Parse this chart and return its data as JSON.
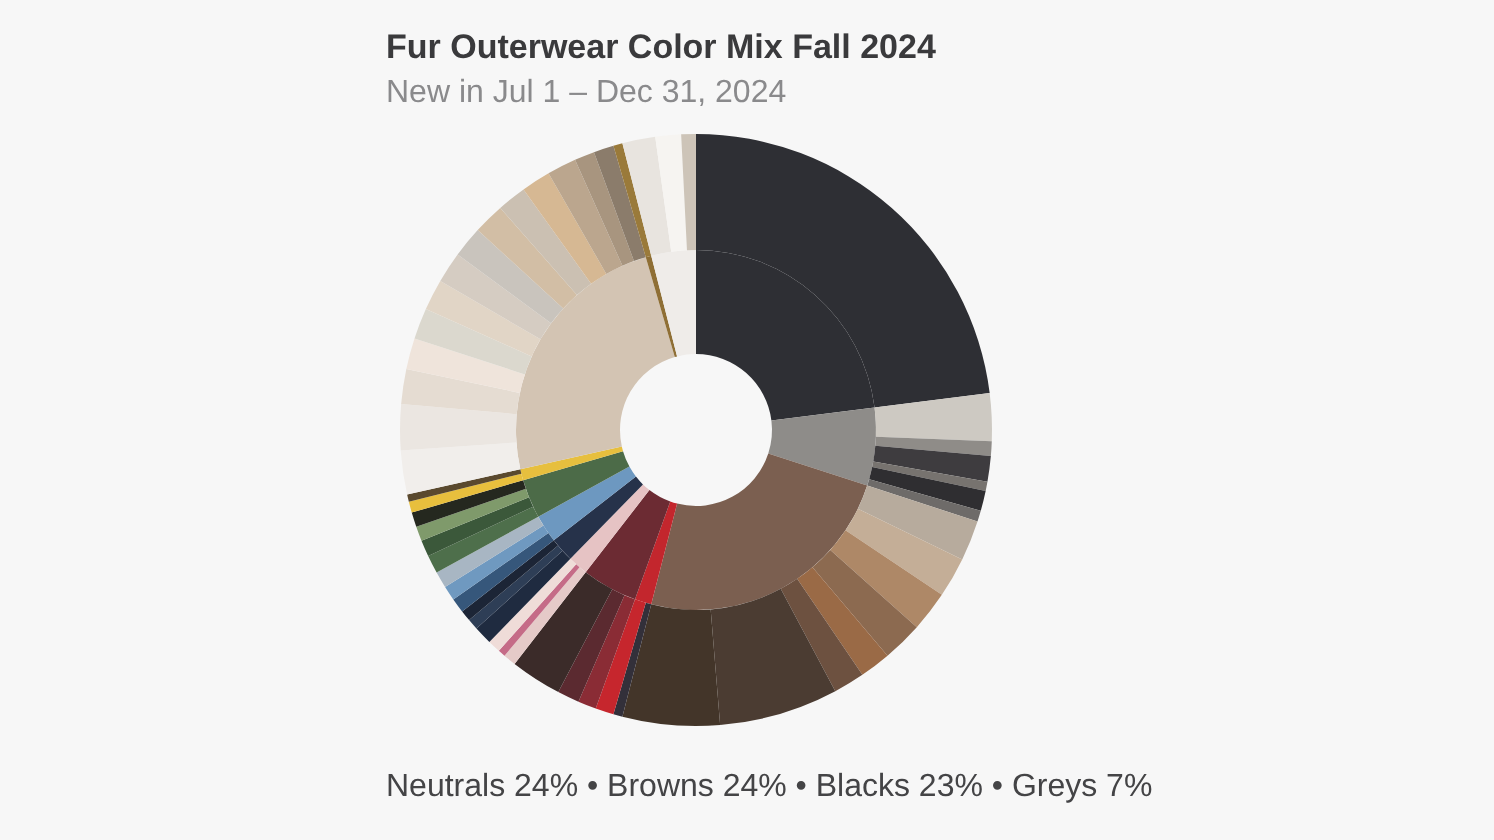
{
  "chart_data": [
    {
      "type": "donut",
      "title": "Fur Outerwear Color Mix Fall 2024",
      "subtitle": "New in Jul 1 – Dec 31, 2024",
      "annotations": [
        "Neutrals 24% • Browns 24% • Blacks 23% • Greys 7%"
      ],
      "categories": [
        null,
        null,
        null,
        null,
        null,
        null,
        null,
        null,
        null,
        null,
        null,
        null,
        null
      ],
      "values": [
        23,
        7,
        24,
        1.5,
        5,
        1.8,
        2.2,
        2.5,
        3.5,
        1,
        24,
        0.5,
        4
      ],
      "colors": [
        "#2e2f34",
        "#8e8c89",
        "#7b5f50",
        "#c3262d",
        "#6c2b33",
        "#e6c3c4",
        "#26324a",
        "#6d98c0",
        "#4c6b48",
        "#e7bf3e",
        "#d3c4b3",
        "#8f6f35",
        "#efece9"
      ]
    },
    {
      "type": "donut",
      "categories": [
        null,
        null,
        null,
        null,
        null,
        null,
        null,
        null,
        null,
        null,
        null,
        null,
        null,
        null,
        null,
        null,
        null,
        null,
        null,
        null,
        null,
        null,
        null,
        null,
        null,
        null,
        null,
        null,
        null,
        null,
        null,
        null,
        null,
        null,
        null,
        null,
        null,
        null,
        null,
        null,
        null,
        null,
        null,
        null,
        null,
        null,
        null,
        null,
        null,
        null,
        null,
        null,
        null
      ],
      "values": [
        23,
        2.6,
        0.8,
        1.4,
        0.5,
        1.1,
        0.6,
        2.2,
        2.2,
        2.2,
        2.2,
        1.7,
        1.7,
        6.5,
        5.3,
        0.5,
        1.0,
        1.0,
        1.2,
        2.8,
        0.7,
        0.4,
        0.7,
        1.0,
        0.6,
        0.6,
        0.8,
        0.8,
        0.9,
        1.0,
        0.9,
        0.8,
        0.8,
        0.6,
        0.4,
        2.4,
        2.5,
        1.9,
        1.7,
        1.7,
        1.7,
        1.7,
        1.7,
        1.7,
        1.6,
        1.6,
        1.6,
        1.1,
        1.1,
        0.5,
        1.8,
        1.4,
        0.8
      ],
      "colors": [
        "#2e2f34",
        "#cdc9c2",
        "#8f8c88",
        "#3e3c3f",
        "#77736f",
        "#2f2e31",
        "#6e6b69",
        "#b7ab9d",
        "#c4ae97",
        "#ae8867",
        "#8c6a50",
        "#9a6a46",
        "#6d5140",
        "#4b3c32",
        "#433529",
        "#33303a",
        "#c6262d",
        "#8a2c35",
        "#5b2a30",
        "#3b2b29",
        "#e5cac8",
        "#c56b87",
        "#efdcd8",
        "#1f2b40",
        "#2e3e56",
        "#1c2536",
        "#36577b",
        "#6f99c0",
        "#a8b6c3",
        "#4e6f4b",
        "#3b583a",
        "#7f9a6b",
        "#25281f",
        "#e8bf3d",
        "#5a492e",
        "#f1eeeb",
        "#ebe6e1",
        "#e5dcd2",
        "#efe4db",
        "#dbd8ce",
        "#e1d5c6",
        "#d5ccc2",
        "#c9c4bd",
        "#d2bea5",
        "#cbc0b2",
        "#d6b893",
        "#bba68e",
        "#a8957f",
        "#8b7c6b",
        "#9a7a3a",
        "#e8e4df",
        "#f6f4f1",
        "#cdc4b8"
      ]
    }
  ]
}
